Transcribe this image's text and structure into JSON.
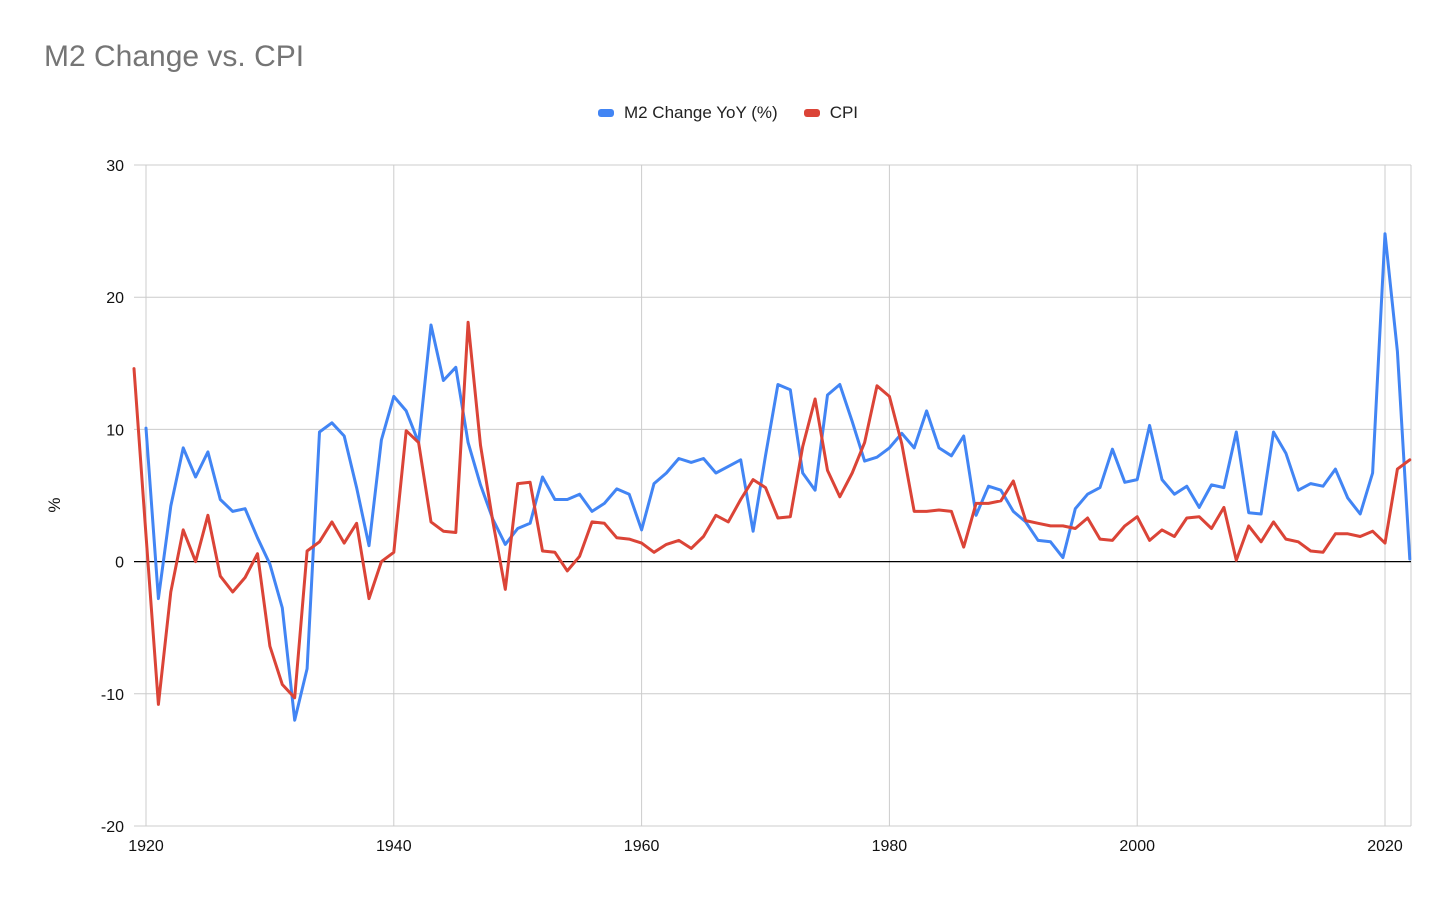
{
  "chart_data": {
    "type": "line",
    "title": "M2 Change vs. CPI",
    "xlabel": "",
    "ylabel": "%",
    "ylim": [
      -20,
      30
    ],
    "xlim": [
      1920,
      2022
    ],
    "xticks": [
      1920,
      1940,
      1960,
      1980,
      2000,
      2020
    ],
    "yticks": [
      -20,
      -10,
      0,
      10,
      20,
      30
    ],
    "grid": true,
    "legend_position": "top-center",
    "series": [
      {
        "name": "M2 Change YoY (%)",
        "color": "#4285f4",
        "start_year": 1920,
        "values": [
          10.1,
          -2.8,
          4.2,
          8.6,
          6.4,
          8.3,
          4.7,
          3.8,
          4.0,
          1.8,
          -0.2,
          -3.5,
          -12.0,
          -8.1,
          9.8,
          10.5,
          9.5,
          5.6,
          1.2,
          9.2,
          12.5,
          11.4,
          9.0,
          17.9,
          13.7,
          14.7,
          9.0,
          5.8,
          3.2,
          1.3,
          2.5,
          2.9,
          6.4,
          4.7,
          4.7,
          5.1,
          3.8,
          4.4,
          5.5,
          5.1,
          2.4,
          5.9,
          6.7,
          7.8,
          7.5,
          7.8,
          6.7,
          7.2,
          7.7,
          2.3,
          8.0,
          13.4,
          13.0,
          6.7,
          5.4,
          12.6,
          13.4,
          10.6,
          7.6,
          7.9,
          8.6,
          9.7,
          8.6,
          11.4,
          8.6,
          8.0,
          9.5,
          3.5,
          5.7,
          5.4,
          3.8,
          3.0,
          1.6,
          1.5,
          0.3,
          4.0,
          5.1,
          5.6,
          8.5,
          6.0,
          6.2,
          10.3,
          6.2,
          5.1,
          5.7,
          4.1,
          5.8,
          5.6,
          9.8,
          3.7,
          3.6,
          9.8,
          8.2,
          5.4,
          5.9,
          5.7,
          7.0,
          4.8,
          3.6,
          6.7,
          24.8,
          15.9,
          0.2
        ]
      },
      {
        "name": "CPI",
        "color": "#db4437",
        "start_year": 1919,
        "values": [
          14.6,
          2.0,
          -10.8,
          -2.3,
          2.4,
          0.0,
          3.5,
          -1.1,
          -2.3,
          -1.2,
          0.6,
          -6.4,
          -9.3,
          -10.3,
          0.8,
          1.5,
          3.0,
          1.4,
          2.9,
          -2.8,
          0.0,
          0.7,
          9.9,
          9.0,
          3.0,
          2.3,
          2.2,
          18.1,
          8.8,
          3.0,
          -2.1,
          5.9,
          6.0,
          0.8,
          0.7,
          -0.7,
          0.4,
          3.0,
          2.9,
          1.8,
          1.7,
          1.4,
          0.7,
          1.3,
          1.6,
          1.0,
          1.9,
          3.5,
          3.0,
          4.7,
          6.2,
          5.6,
          3.3,
          3.4,
          8.7,
          12.3,
          6.9,
          4.9,
          6.7,
          9.0,
          13.3,
          12.5,
          8.9,
          3.8,
          3.8,
          3.9,
          3.8,
          1.1,
          4.4,
          4.4,
          4.6,
          6.1,
          3.1,
          2.9,
          2.7,
          2.7,
          2.5,
          3.3,
          1.7,
          1.6,
          2.7,
          3.4,
          1.6,
          2.4,
          1.9,
          3.3,
          3.4,
          2.5,
          4.1,
          0.1,
          2.7,
          1.5,
          3.0,
          1.7,
          1.5,
          0.8,
          0.7,
          2.1,
          2.1,
          1.9,
          2.3,
          1.4,
          7.0,
          7.7
        ]
      }
    ]
  }
}
